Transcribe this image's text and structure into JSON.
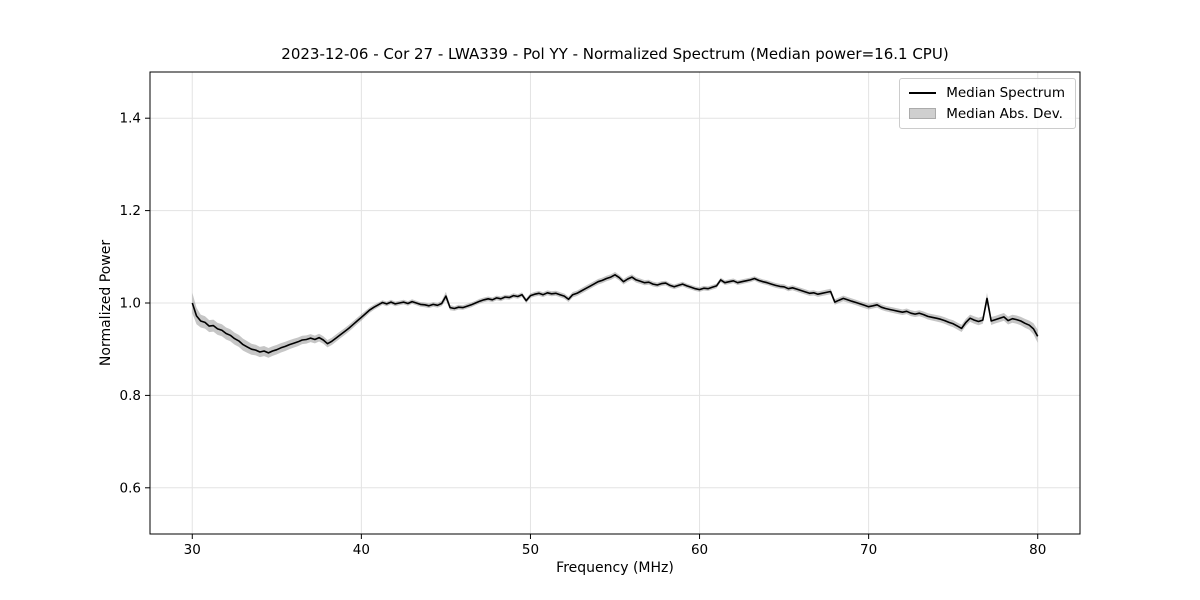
{
  "chart_data": {
    "type": "line",
    "title": "2023-12-06 - Cor 27 - LWA339 - Pol YY - Normalized Spectrum (Median power=16.1 CPU)",
    "xlabel": "Frequency (MHz)",
    "ylabel": "Normalized Power",
    "xlim": [
      27.5,
      82.5
    ],
    "ylim": [
      0.5,
      1.5
    ],
    "x_ticks": [
      30,
      40,
      50,
      60,
      70,
      80
    ],
    "y_ticks": [
      0.6,
      0.8,
      1.0,
      1.2,
      1.4
    ],
    "grid": true,
    "legend": {
      "position": "upper right",
      "entries": [
        {
          "label": "Median Spectrum",
          "swatch": "line",
          "color": "#000000"
        },
        {
          "label": "Median Abs. Dev.",
          "swatch": "patch",
          "color": "#cfcfcf"
        }
      ]
    },
    "series": [
      {
        "name": "Median Spectrum",
        "type": "line",
        "color": "#000000",
        "x_start": 30.0,
        "x_step": 0.25,
        "values": [
          1.0,
          0.972,
          0.961,
          0.958,
          0.95,
          0.951,
          0.944,
          0.941,
          0.934,
          0.93,
          0.923,
          0.918,
          0.91,
          0.905,
          0.9,
          0.898,
          0.894,
          0.896,
          0.892,
          0.896,
          0.899,
          0.903,
          0.906,
          0.91,
          0.913,
          0.916,
          0.92,
          0.921,
          0.924,
          0.921,
          0.925,
          0.92,
          0.912,
          0.917,
          0.924,
          0.931,
          0.938,
          0.945,
          0.953,
          0.961,
          0.969,
          0.977,
          0.985,
          0.991,
          0.996,
          1.001,
          0.998,
          1.002,
          0.998,
          1.0,
          1.002,
          0.999,
          1.003,
          1.0,
          0.997,
          0.996,
          0.994,
          0.997,
          0.995,
          0.999,
          1.015,
          0.99,
          0.988,
          0.991,
          0.99,
          0.993,
          0.996,
          1.0,
          1.004,
          1.007,
          1.009,
          1.007,
          1.011,
          1.009,
          1.013,
          1.012,
          1.016,
          1.014,
          1.018,
          1.005,
          1.016,
          1.019,
          1.021,
          1.018,
          1.022,
          1.02,
          1.021,
          1.018,
          1.015,
          1.008,
          1.018,
          1.021,
          1.026,
          1.031,
          1.036,
          1.041,
          1.046,
          1.049,
          1.053,
          1.056,
          1.061,
          1.055,
          1.046,
          1.052,
          1.056,
          1.05,
          1.047,
          1.044,
          1.045,
          1.041,
          1.039,
          1.042,
          1.043,
          1.038,
          1.035,
          1.038,
          1.041,
          1.037,
          1.034,
          1.031,
          1.029,
          1.032,
          1.031,
          1.034,
          1.037,
          1.05,
          1.044,
          1.046,
          1.048,
          1.044,
          1.046,
          1.048,
          1.05,
          1.053,
          1.049,
          1.046,
          1.044,
          1.041,
          1.038,
          1.036,
          1.035,
          1.031,
          1.033,
          1.03,
          1.027,
          1.024,
          1.021,
          1.022,
          1.019,
          1.021,
          1.023,
          1.025,
          1.002,
          1.006,
          1.01,
          1.007,
          1.004,
          1.001,
          0.998,
          0.995,
          0.992,
          0.994,
          0.996,
          0.991,
          0.988,
          0.986,
          0.984,
          0.982,
          0.98,
          0.982,
          0.978,
          0.976,
          0.978,
          0.975,
          0.971,
          0.969,
          0.967,
          0.965,
          0.962,
          0.958,
          0.955,
          0.95,
          0.945,
          0.958,
          0.967,
          0.963,
          0.96,
          0.963,
          1.01,
          0.961,
          0.964,
          0.967,
          0.97,
          0.962,
          0.966,
          0.964,
          0.961,
          0.956,
          0.952,
          0.944,
          0.928
        ]
      },
      {
        "name": "Median Abs. Dev.",
        "type": "band_halfwidth",
        "color": "#808080",
        "opacity": 0.45,
        "points": [
          [
            30.0,
            0.022
          ],
          [
            30.5,
            0.014
          ],
          [
            31.0,
            0.013
          ],
          [
            33.0,
            0.013
          ],
          [
            34.0,
            0.011
          ],
          [
            35.5,
            0.01
          ],
          [
            36.5,
            0.009
          ],
          [
            38.0,
            0.008
          ],
          [
            40.0,
            0.007
          ],
          [
            41.0,
            0.005
          ],
          [
            44.7,
            0.005
          ],
          [
            45.0,
            0.009
          ],
          [
            45.3,
            0.005
          ],
          [
            50.0,
            0.005
          ],
          [
            53.0,
            0.006
          ],
          [
            56.0,
            0.006
          ],
          [
            58.0,
            0.005
          ],
          [
            63.0,
            0.005
          ],
          [
            68.0,
            0.006
          ],
          [
            72.0,
            0.006
          ],
          [
            74.0,
            0.007
          ],
          [
            76.0,
            0.008
          ],
          [
            76.8,
            0.008
          ],
          [
            77.0,
            0.012
          ],
          [
            77.3,
            0.008
          ],
          [
            79.0,
            0.009
          ],
          [
            79.5,
            0.01
          ],
          [
            80.0,
            0.014
          ]
        ]
      }
    ]
  },
  "colors": {
    "background": "#ffffff",
    "grid": "#e3e3e3",
    "frame": "#000000",
    "tick": "#000000",
    "text": "#000000",
    "line": "#000000",
    "band_fill": "#808080",
    "band_opacity": "0.45",
    "legend_border": "#cccccc",
    "legend_patch_fill": "#cfcfcf",
    "legend_patch_border": "#ababab"
  },
  "layout_values": {
    "tick_font_px": "13.5"
  }
}
